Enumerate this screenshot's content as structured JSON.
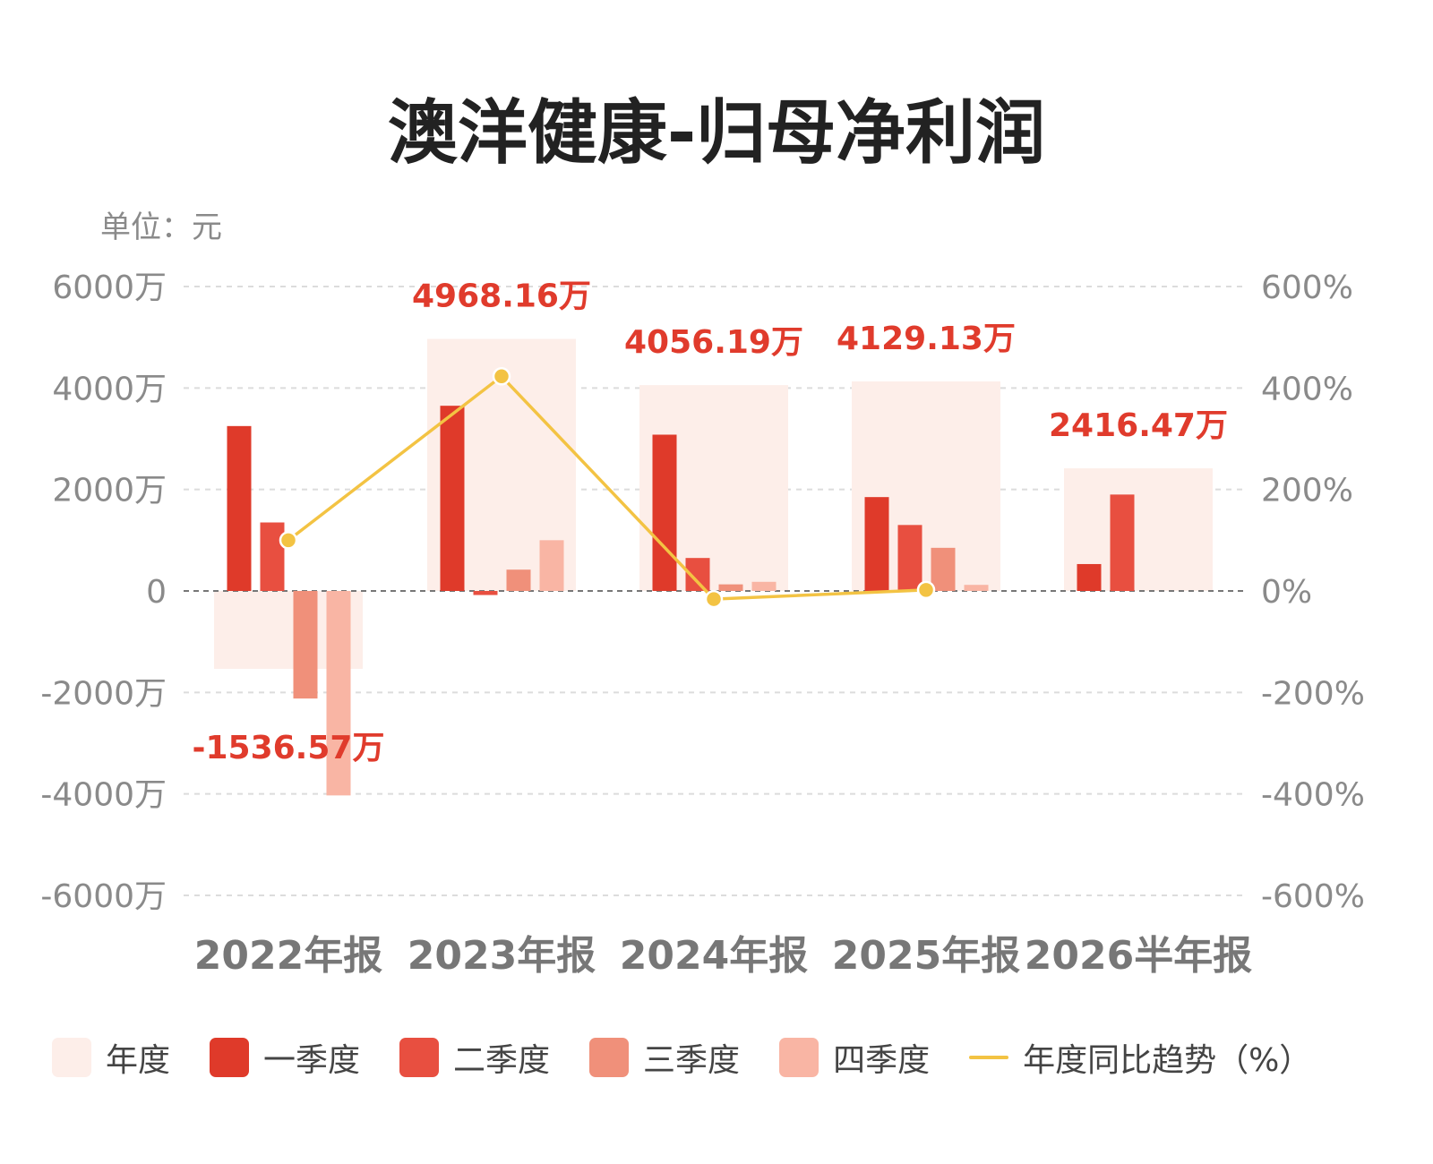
{
  "chart_data": {
    "type": "bar",
    "title": "澳洋健康-归母净利润",
    "unit_label": "单位：元",
    "categories": [
      "2022年报",
      "2023年报",
      "2024年报",
      "2025年报",
      "2026半年报"
    ],
    "annual": {
      "name": "年度",
      "values": [
        -1536.57,
        4968.16,
        4056.19,
        4129.13,
        2416.47
      ],
      "labels": [
        "-1536.57万",
        "4968.16万",
        "4056.19万",
        "4129.13万",
        "2416.47万"
      ]
    },
    "series": [
      {
        "name": "一季度",
        "values": [
          3250,
          3650,
          3080,
          1850,
          530
        ]
      },
      {
        "name": "二季度",
        "values": [
          1350,
          -80,
          650,
          1300,
          1900
        ]
      },
      {
        "name": "三季度",
        "values": [
          -2120,
          420,
          130,
          850,
          null
        ]
      },
      {
        "name": "四季度",
        "values": [
          -4030,
          1000,
          180,
          120,
          null
        ]
      }
    ],
    "yoy": {
      "name": "年度同比趋势（%）",
      "values": [
        100,
        423,
        -16,
        2,
        null
      ]
    },
    "y_left": {
      "ticks": [
        6000,
        4000,
        2000,
        0,
        -2000,
        -4000,
        -6000
      ],
      "labels": [
        "6000万",
        "4000万",
        "2000万",
        "0",
        "-2000万",
        "-4000万",
        "-6000万"
      ],
      "range": [
        -6000,
        6000
      ]
    },
    "y_right": {
      "ticks": [
        600,
        400,
        200,
        0,
        -200,
        -400,
        -600
      ],
      "labels": [
        "600%",
        "400%",
        "200%",
        "0%",
        "-200%",
        "-400%",
        "-600%"
      ],
      "range": [
        -600,
        600
      ]
    },
    "grid": true,
    "legend_position": "bottom",
    "colors": {
      "annual": "#fdeee9",
      "q1": "#df3a2a",
      "q2": "#e84f40",
      "q3": "#f0907a",
      "q4": "#f9b5a4",
      "line": "#f3c343",
      "label": "#e03b2c",
      "axis_text": "#8a8a8a",
      "grid": "#dcdcdc",
      "zero": "#777777"
    }
  },
  "legend": [
    {
      "label": "年度",
      "kind": "box",
      "color": "#fdeee9"
    },
    {
      "label": "一季度",
      "kind": "box",
      "color": "#df3a2a"
    },
    {
      "label": "二季度",
      "kind": "box",
      "color": "#e84f40"
    },
    {
      "label": "三季度",
      "kind": "box",
      "color": "#f0907a"
    },
    {
      "label": "四季度",
      "kind": "box",
      "color": "#f9b5a4"
    },
    {
      "label": "年度同比趋势（%）",
      "kind": "line",
      "color": "#f3c343"
    }
  ]
}
